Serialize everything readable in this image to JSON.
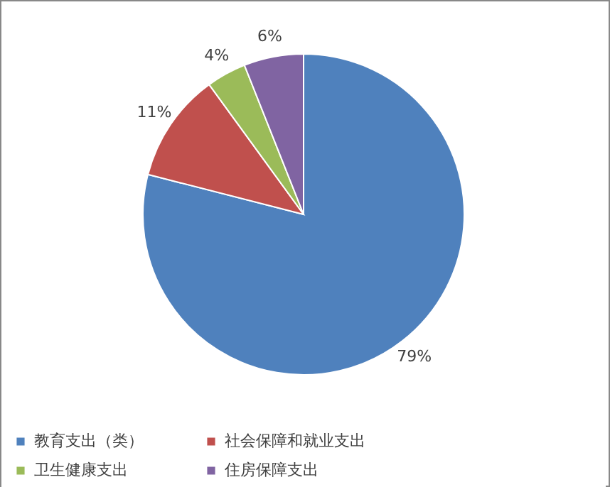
{
  "chart_data": {
    "type": "pie",
    "categories": [
      "教育支出（类）",
      "社会保障和就业支出",
      "卫生健康支出",
      "住房保障支出"
    ],
    "values": [
      79,
      11,
      4,
      6
    ],
    "colors": [
      "#4f81bd",
      "#c0504d",
      "#9bbb59",
      "#8064a2"
    ],
    "value_labels": [
      "79%",
      "11%",
      "4%",
      "6%"
    ],
    "legend": "bottom"
  }
}
